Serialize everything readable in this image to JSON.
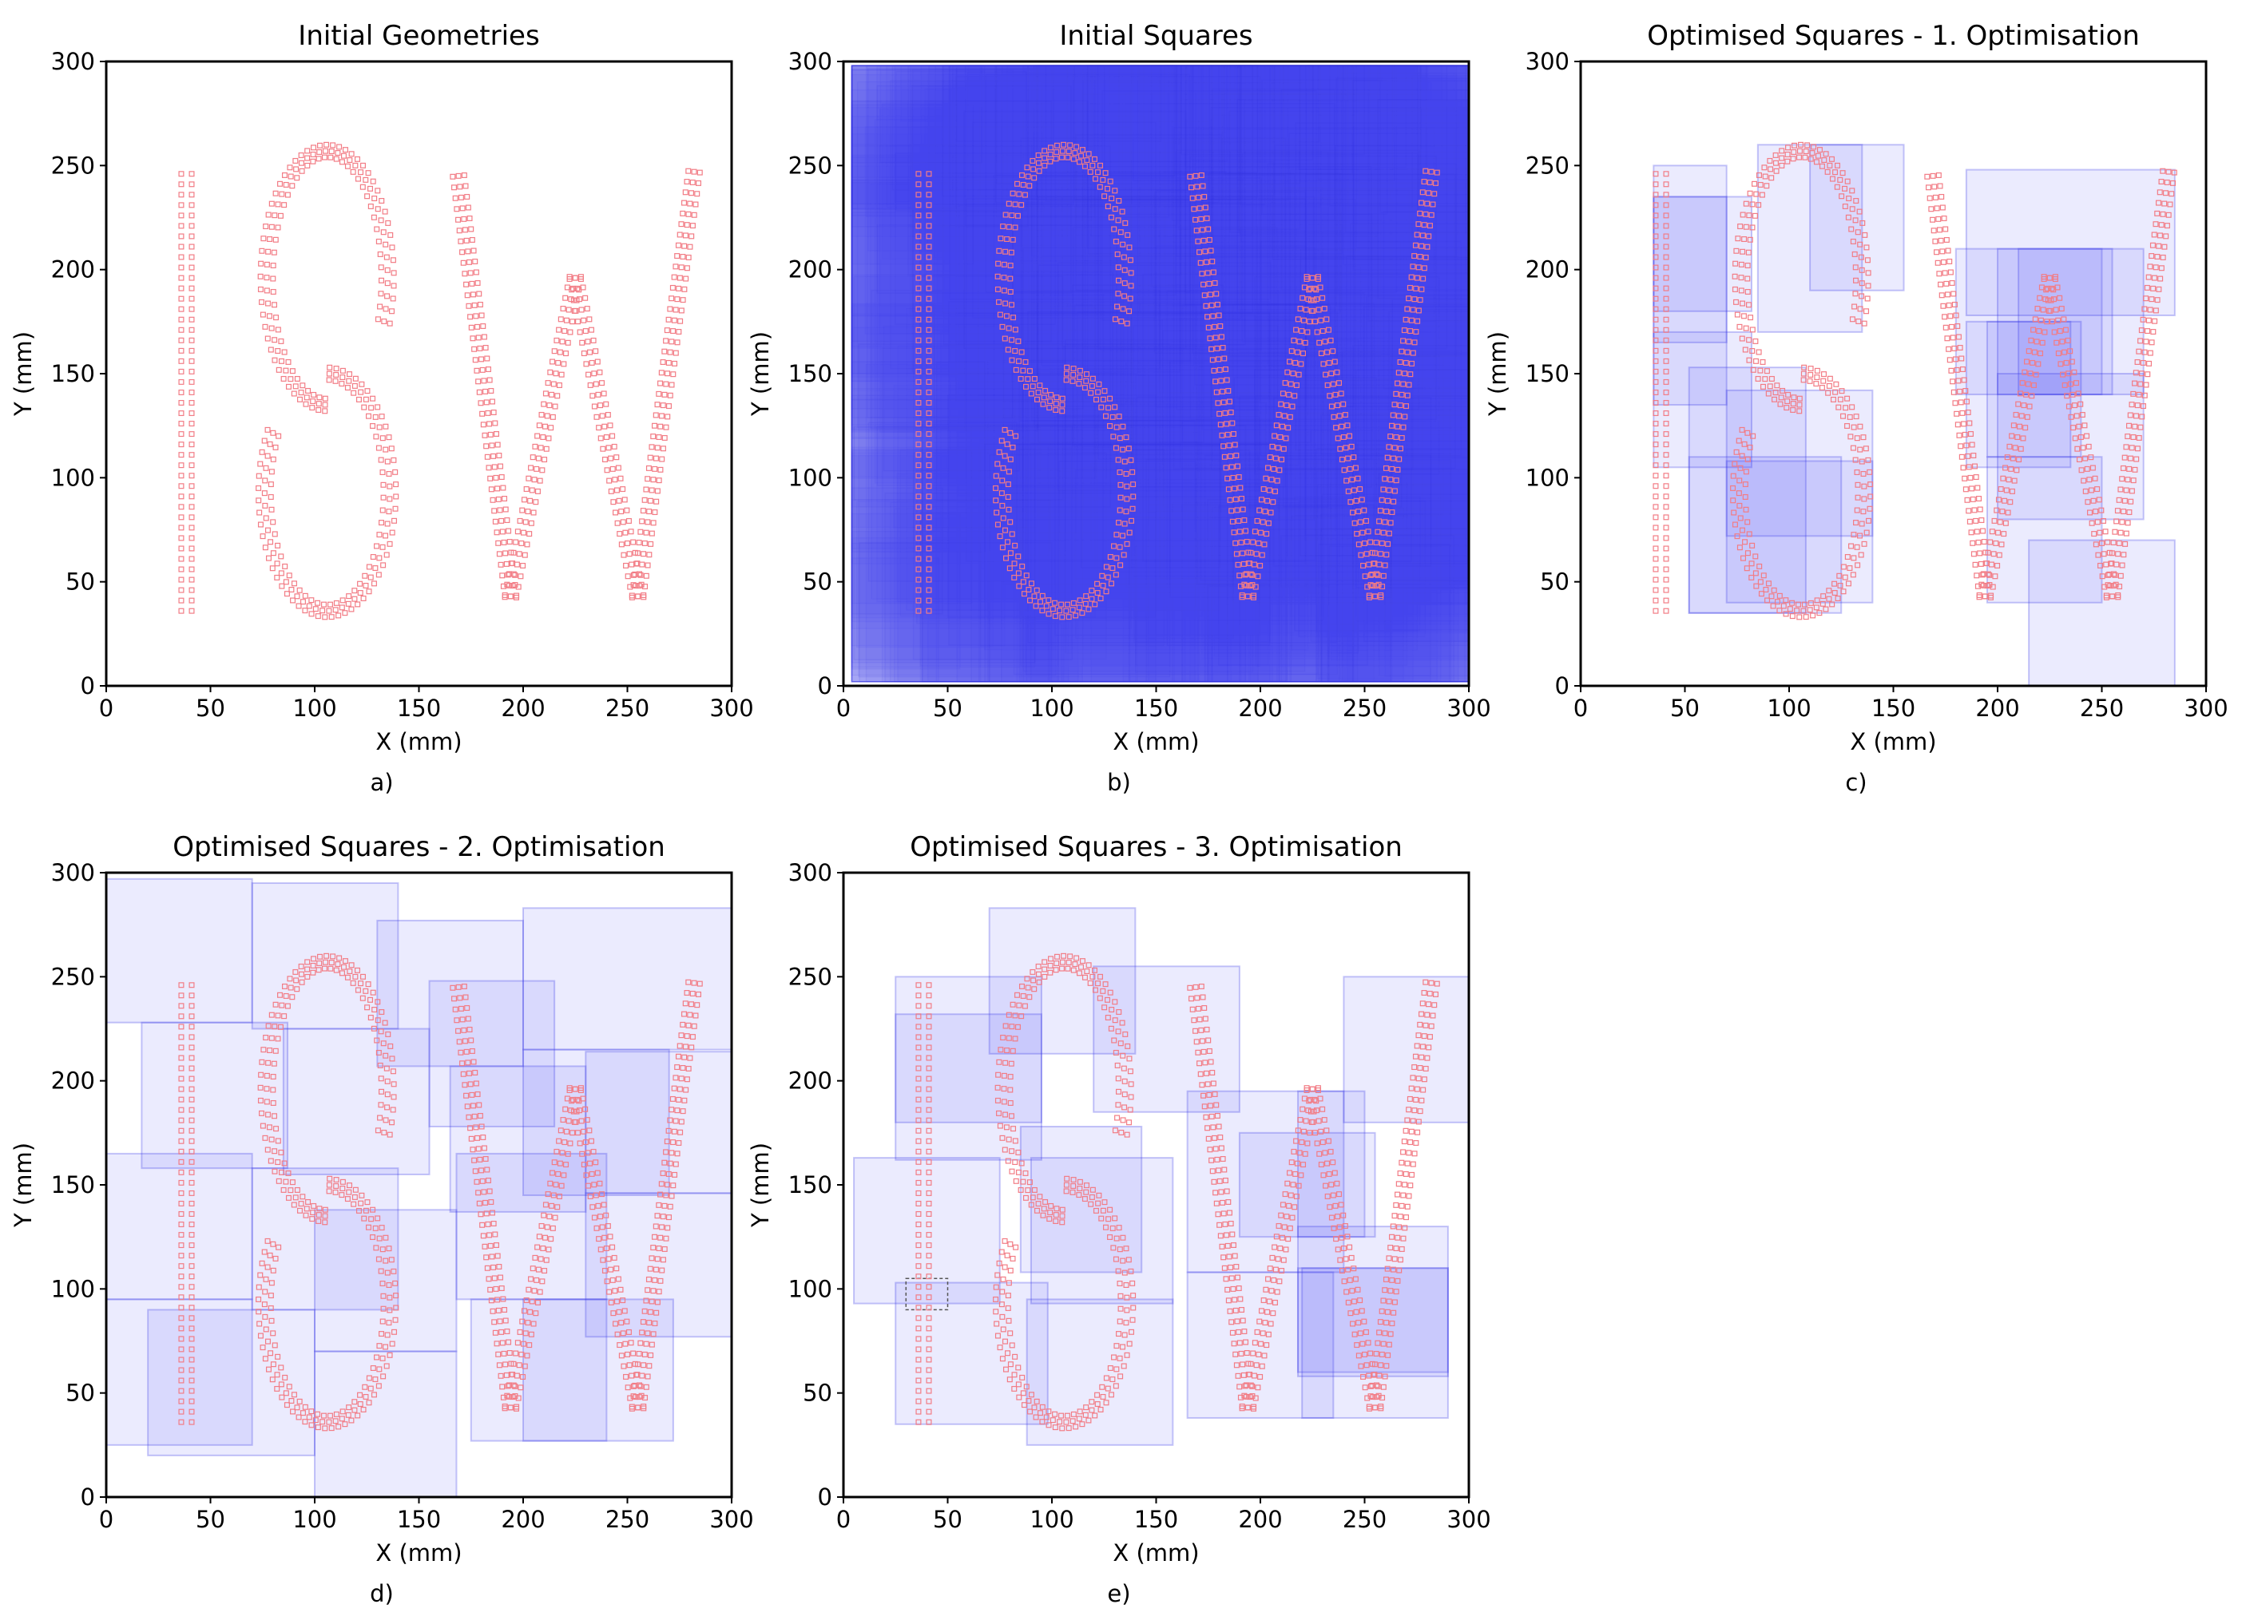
{
  "colors": {
    "point_stroke": "#f27c85",
    "square_fill": "#4a4af2",
    "square_stroke": "#3535e6",
    "axes": "#000000"
  },
  "chart_data": [
    {
      "type": "scatter",
      "title": "Initial Geometries",
      "caption": "a)",
      "xlabel": "X (mm)",
      "ylabel": "Y (mm)",
      "xlim": [
        0,
        300
      ],
      "ylim": [
        0,
        300
      ],
      "xticks": [
        "0",
        "50",
        "100",
        "150",
        "200",
        "250",
        "300"
      ],
      "yticks": [
        "0",
        "50",
        "100",
        "150",
        "200",
        "250",
        "300"
      ],
      "grid": false,
      "series": [
        {
          "marker": "small-square",
          "letters": [
            "I",
            "S",
            "W"
          ]
        }
      ],
      "squares": [],
      "highlight": []
    },
    {
      "type": "scatter",
      "title": "Initial Squares",
      "caption": "b)",
      "xlabel": "X (mm)",
      "ylabel": "Y (mm)",
      "xlim": [
        0,
        300
      ],
      "ylim": [
        0,
        300
      ],
      "xticks": [
        "0",
        "50",
        "100",
        "150",
        "200",
        "250",
        "300"
      ],
      "yticks": [
        "0",
        "50",
        "100",
        "150",
        "200",
        "250",
        "300"
      ],
      "grid": false,
      "series": [
        {
          "marker": "small-square",
          "letters": [
            "I",
            "S",
            "W"
          ]
        }
      ],
      "dense_overlay": true,
      "squares": [],
      "highlight": []
    },
    {
      "type": "scatter",
      "title": "Optimised Squares - 1. Optimisation",
      "caption": "c)",
      "xlabel": "X (mm)",
      "ylabel": "Y (mm)",
      "xlim": [
        0,
        300
      ],
      "ylim": [
        0,
        300
      ],
      "xticks": [
        "0",
        "50",
        "100",
        "150",
        "200",
        "250",
        "300"
      ],
      "yticks": [
        "0",
        "50",
        "100",
        "150",
        "200",
        "250",
        "300"
      ],
      "grid": false,
      "series": [
        {
          "marker": "small-square",
          "letters": [
            "I",
            "S",
            "W"
          ]
        }
      ],
      "squares": [
        [
          35,
          135,
          70,
          250
        ],
        [
          35,
          165,
          70,
          235
        ],
        [
          35,
          180,
          82,
          235
        ],
        [
          35,
          105,
          82,
          170
        ],
        [
          85,
          170,
          135,
          260
        ],
        [
          110,
          190,
          155,
          260
        ],
        [
          52,
          35,
          108,
          153
        ],
        [
          70,
          40,
          140,
          142
        ],
        [
          70,
          72,
          140,
          108
        ],
        [
          52,
          35,
          125,
          110
        ],
        [
          180,
          140,
          250,
          210
        ],
        [
          200,
          140,
          270,
          210
        ],
        [
          210,
          140,
          255,
          210
        ],
        [
          185,
          178,
          285,
          248
        ],
        [
          195,
          40,
          250,
          110
        ],
        [
          195,
          110,
          240,
          175
        ],
        [
          200,
          80,
          270,
          150
        ],
        [
          215,
          0,
          285,
          70
        ],
        [
          185,
          105,
          235,
          175
        ]
      ],
      "highlight": []
    },
    {
      "type": "scatter",
      "title": "Optimised Squares - 2. Optimisation",
      "caption": "d)",
      "xlabel": "X (mm)",
      "ylabel": "Y (mm)",
      "xlim": [
        0,
        300
      ],
      "ylim": [
        0,
        300
      ],
      "xticks": [
        "0",
        "50",
        "100",
        "150",
        "200",
        "250",
        "300"
      ],
      "yticks": [
        "0",
        "50",
        "100",
        "150",
        "200",
        "250",
        "300"
      ],
      "grid": false,
      "series": [
        {
          "marker": "small-square",
          "letters": [
            "I",
            "S",
            "W"
          ]
        }
      ],
      "squares": [
        [
          0,
          228,
          70,
          297
        ],
        [
          70,
          225,
          140,
          295
        ],
        [
          130,
          207,
          200,
          277
        ],
        [
          17,
          158,
          87,
          228
        ],
        [
          85,
          155,
          155,
          225
        ],
        [
          155,
          178,
          215,
          248
        ],
        [
          0,
          95,
          70,
          165
        ],
        [
          70,
          90,
          140,
          158
        ],
        [
          20,
          20,
          100,
          90
        ],
        [
          0,
          25,
          70,
          95
        ],
        [
          100,
          70,
          168,
          138
        ],
        [
          100,
          0,
          168,
          70
        ],
        [
          168,
          95,
          240,
          165
        ],
        [
          200,
          145,
          270,
          215
        ],
        [
          165,
          137,
          230,
          207
        ],
        [
          200,
          215,
          300,
          283
        ],
        [
          230,
          146,
          300,
          214
        ],
        [
          200,
          27,
          240,
          95
        ],
        [
          230,
          77,
          300,
          146
        ],
        [
          175,
          27,
          272,
          95
        ]
      ],
      "highlight": []
    },
    {
      "type": "scatter",
      "title": "Optimised Squares - 3. Optimisation",
      "caption": "e)",
      "xlabel": "X (mm)",
      "ylabel": "Y (mm)",
      "xlim": [
        0,
        300
      ],
      "ylim": [
        0,
        300
      ],
      "xticks": [
        "0",
        "50",
        "100",
        "150",
        "200",
        "250",
        "300"
      ],
      "yticks": [
        "0",
        "50",
        "100",
        "150",
        "200",
        "250",
        "300"
      ],
      "grid": false,
      "series": [
        {
          "marker": "small-square",
          "letters": [
            "I",
            "S",
            "W"
          ]
        }
      ],
      "squares": [
        [
          25,
          162,
          95,
          250
        ],
        [
          25,
          180,
          95,
          232
        ],
        [
          70,
          213,
          140,
          283
        ],
        [
          120,
          185,
          190,
          255
        ],
        [
          5,
          93,
          75,
          163
        ],
        [
          85,
          108,
          143,
          178
        ],
        [
          25,
          35,
          98,
          103
        ],
        [
          90,
          93,
          158,
          163
        ],
        [
          88,
          25,
          158,
          95
        ],
        [
          165,
          108,
          240,
          195
        ],
        [
          190,
          125,
          255,
          175
        ],
        [
          218,
          125,
          250,
          195
        ],
        [
          240,
          180,
          300,
          250
        ],
        [
          165,
          38,
          235,
          108
        ],
        [
          220,
          38,
          290,
          110
        ],
        [
          218,
          60,
          290,
          130
        ],
        [
          218,
          58,
          290,
          110
        ]
      ],
      "highlight": [
        [
          30,
          90,
          50,
          105
        ]
      ]
    }
  ]
}
